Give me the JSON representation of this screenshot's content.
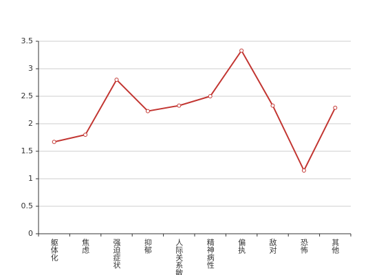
{
  "chart_data": {
    "type": "line",
    "categories": [
      "躯体化",
      "焦虑",
      "强迫症状",
      "抑郁",
      "人际关系敏感",
      "精神病性",
      "偏执",
      "敌对",
      "恐怖",
      "其他"
    ],
    "series": [
      {
        "color": "#c23531",
        "values": [
          1.67,
          1.8,
          2.8,
          2.23,
          2.33,
          2.5,
          3.33,
          2.33,
          1.15,
          2.29
        ]
      }
    ],
    "ylim": [
      0,
      3.5
    ],
    "yticks": [
      0,
      0.5,
      1,
      1.5,
      2,
      2.5,
      3,
      3.5
    ],
    "grid": true
  }
}
